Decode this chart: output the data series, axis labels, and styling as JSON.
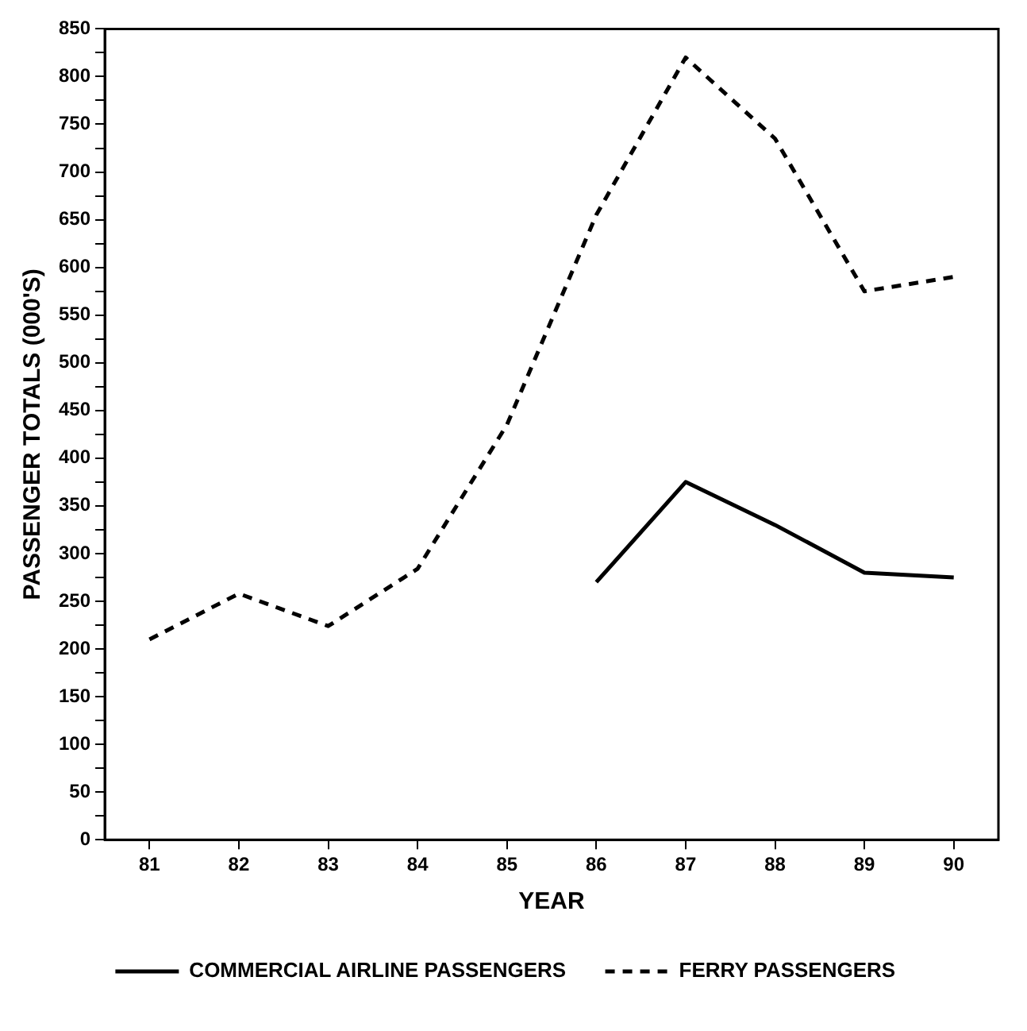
{
  "chart_data": {
    "type": "line",
    "xlabel": "YEAR",
    "ylabel": "PASSENGER TOTALS (000'S)",
    "categories": [
      "81",
      "82",
      "83",
      "84",
      "85",
      "86",
      "87",
      "88",
      "89",
      "90"
    ],
    "series": [
      {
        "name": "COMMERCIAL AIRLINE PASSENGERS",
        "color": "#000000",
        "line_style": "solid",
        "values": [
          null,
          null,
          null,
          null,
          null,
          270,
          375,
          330,
          280,
          275
        ]
      },
      {
        "name": "FERRY PASSENGERS",
        "color": "#000000",
        "line_style": "dashed",
        "values": [
          210,
          258,
          224,
          284,
          435,
          655,
          820,
          735,
          575,
          590
        ]
      }
    ],
    "ylim": [
      0,
      850
    ],
    "yticks": [
      0,
      {
        "value": 25,
        "label": null
      },
      50,
      {
        "value": 75,
        "label": null
      },
      100,
      {
        "value": 125,
        "label": null
      },
      150,
      {
        "value": 175,
        "label": null
      },
      200,
      {
        "value": 225,
        "label": null
      },
      250,
      {
        "value": 275,
        "label": null
      },
      300,
      {
        "value": 325,
        "label": null
      },
      350,
      {
        "value": 375,
        "label": null
      },
      400,
      {
        "value": 425,
        "label": null
      },
      450,
      {
        "value": 475,
        "label": null
      },
      500,
      {
        "value": 525,
        "label": null
      },
      550,
      {
        "value": 575,
        "label": null
      },
      600,
      {
        "value": 625,
        "label": null
      },
      650,
      {
        "value": 675,
        "label": null
      },
      700,
      {
        "value": 725,
        "label": null
      },
      750,
      {
        "value": 775,
        "label": null
      },
      800,
      {
        "value": 825,
        "label": null
      },
      850
    ],
    "grid": false,
    "legend": "bottom",
    "marker": "none"
  }
}
